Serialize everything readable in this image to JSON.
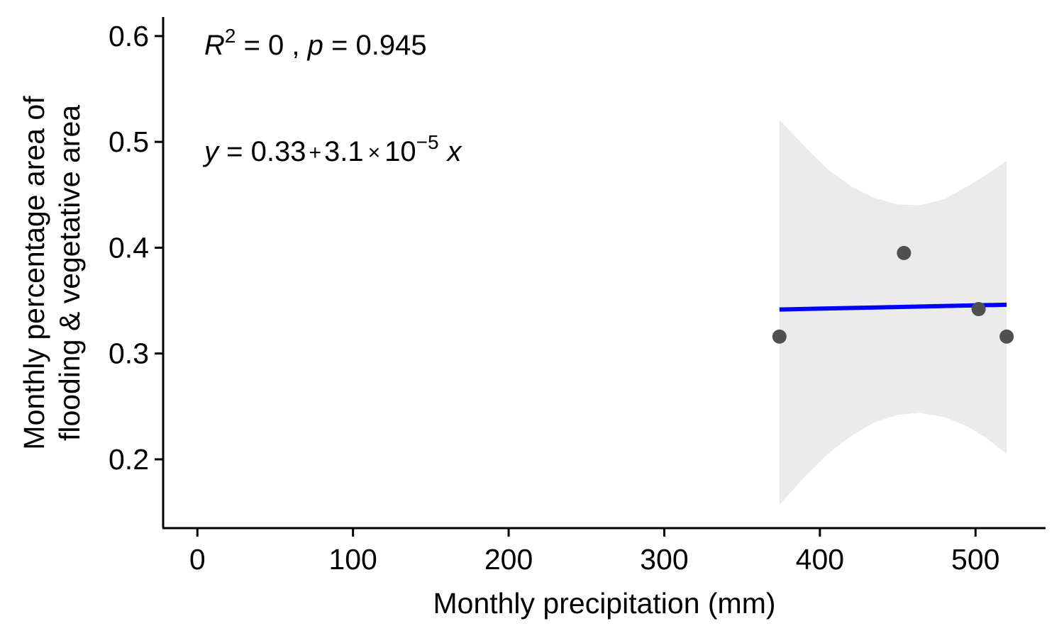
{
  "chart_data": {
    "type": "scatter",
    "title": "",
    "xlabel": "Monthly precipitation (mm)",
    "ylabel_lines": [
      "Monthly percentage area of",
      "flooding & vegetative area"
    ],
    "xlim": [
      -22,
      545
    ],
    "ylim": [
      0.135,
      0.618
    ],
    "x_ticks": [
      0,
      100,
      200,
      300,
      400,
      500
    ],
    "x_tick_labels": [
      "0",
      "100",
      "200",
      "300",
      "400",
      "500"
    ],
    "y_ticks": [
      0.2,
      0.3,
      0.4,
      0.5,
      0.6
    ],
    "y_tick_labels": [
      "0.2",
      "0.3",
      "0.4",
      "0.5",
      "0.6"
    ],
    "grid": false,
    "points": [
      {
        "x": 374,
        "y": 0.316
      },
      {
        "x": 454,
        "y": 0.395
      },
      {
        "x": 502,
        "y": 0.342
      },
      {
        "x": 520,
        "y": 0.316
      }
    ],
    "point_color": "#505050",
    "regression": {
      "intercept": 0.33,
      "slope": 3.1e-05,
      "x_range": [
        374,
        520
      ],
      "line_color": "#0000ff",
      "band_color": "#ebebeb",
      "ci_band": [
        {
          "x": 374,
          "lower": 0.157,
          "upper": 0.521
        },
        {
          "x": 390,
          "lower": 0.183,
          "upper": 0.496
        },
        {
          "x": 405,
          "lower": 0.205,
          "upper": 0.474
        },
        {
          "x": 420,
          "lower": 0.222,
          "upper": 0.458
        },
        {
          "x": 435,
          "lower": 0.235,
          "upper": 0.447
        },
        {
          "x": 450,
          "lower": 0.242,
          "upper": 0.441
        },
        {
          "x": 464,
          "lower": 0.244,
          "upper": 0.44
        },
        {
          "x": 480,
          "lower": 0.24,
          "upper": 0.446
        },
        {
          "x": 495,
          "lower": 0.231,
          "upper": 0.458
        },
        {
          "x": 508,
          "lower": 0.219,
          "upper": 0.47
        },
        {
          "x": 520,
          "lower": 0.205,
          "upper": 0.482
        }
      ]
    },
    "annotations": {
      "r2": {
        "r_letter": "R",
        "r_exponent": "2",
        "r_rest": " = 0 , ",
        "p_letter": "p",
        "p_rest": " = 0.945"
      },
      "equation": {
        "y_letter": "y",
        "eq_sign": " = 0.33",
        "plus": "+",
        "coef": "3.1",
        "times": "×",
        "base": "10",
        "exponent": "−5",
        "x_letter": "x"
      }
    }
  }
}
